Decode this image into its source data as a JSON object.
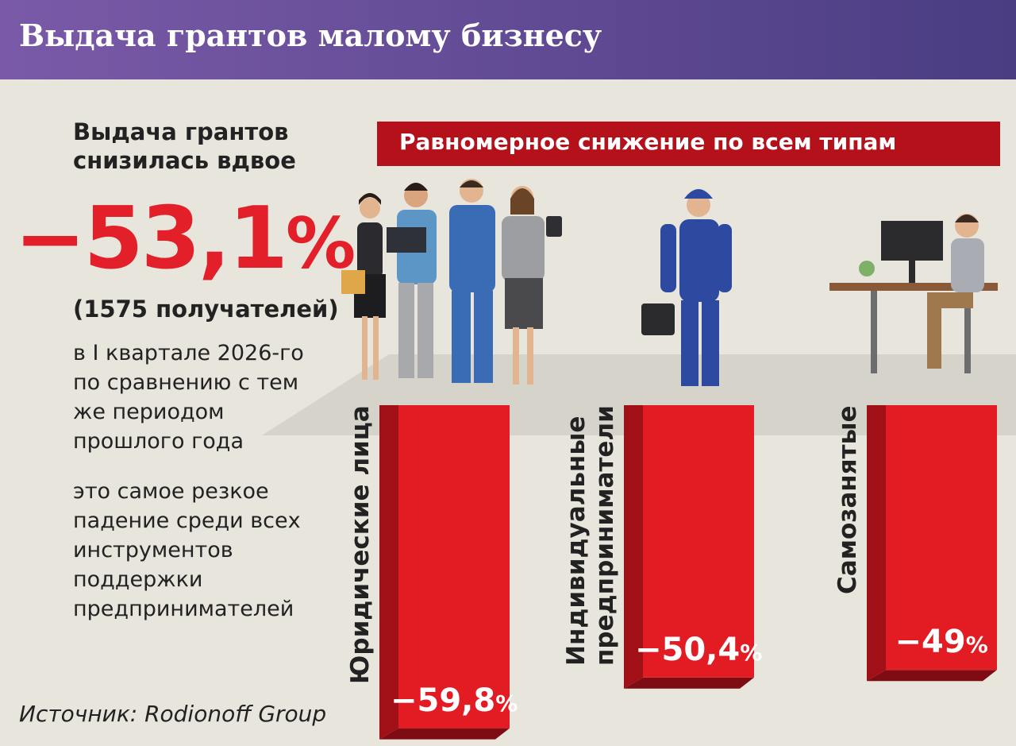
{
  "header": {
    "title": "Выдача грантов малому бизнесу"
  },
  "left": {
    "lead": "Выдача грантов снизилась вдвое",
    "big_value": "−53,1",
    "big_unit": "%",
    "recipients": "(1575 получателей)",
    "period": "в I квартале 2026-го по сравнению с тем же периодом прошлого года",
    "note": "это самое резкое падение среди всех инструментов поддержки предпринимателей",
    "source": "Источник: Rodionoff Group"
  },
  "banner": {
    "text": "Равномерное снижение по всем типам"
  },
  "colors": {
    "bar": "#e31b23",
    "bar_side": "#a10f17",
    "banner": "#b5111b",
    "header_start": "#7a5aa8",
    "header_end": "#4a3d82",
    "accent_text": "#e3202a"
  },
  "chart_data": {
    "type": "bar",
    "title": "Равномерное снижение по всем типам",
    "categories": [
      "Юридические лица",
      "Индивидуальные предприниматели",
      "Самозанятые"
    ],
    "category_lines": [
      [
        "Юридические лица"
      ],
      [
        "Индивидуальные",
        "предприниматели"
      ],
      [
        "Самозанятые"
      ]
    ],
    "values": [
      -59.8,
      -50.4,
      -49
    ],
    "value_labels": [
      "−59,8",
      "−50,4",
      "−49"
    ],
    "unit": "%",
    "icons": [
      "business-team-icon",
      "worker-icon",
      "freelancer-icon"
    ],
    "grid": false
  }
}
